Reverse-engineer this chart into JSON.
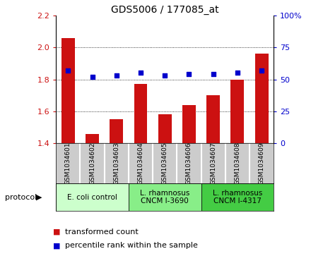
{
  "title": "GDS5006 / 177085_at",
  "samples": [
    "GSM1034601",
    "GSM1034602",
    "GSM1034603",
    "GSM1034604",
    "GSM1034605",
    "GSM1034606",
    "GSM1034607",
    "GSM1034608",
    "GSM1034609"
  ],
  "transformed_count": [
    2.06,
    1.46,
    1.55,
    1.77,
    1.58,
    1.64,
    1.7,
    1.8,
    1.96
  ],
  "percentile_rank": [
    57,
    52,
    53,
    55,
    53,
    54,
    54,
    55,
    57
  ],
  "ylim_left": [
    1.4,
    2.2
  ],
  "ylim_right": [
    0,
    100
  ],
  "yticks_left": [
    1.4,
    1.6,
    1.8,
    2.0,
    2.2
  ],
  "yticks_right": [
    0,
    25,
    50,
    75,
    100
  ],
  "ytick_labels_left": [
    "1.4",
    "1.6",
    "1.8",
    "2.0",
    "2.2"
  ],
  "ytick_labels_right": [
    "0",
    "25",
    "50",
    "75",
    "100%"
  ],
  "bar_color": "#cc1111",
  "dot_color": "#0000cc",
  "bg_color": "#ffffff",
  "sample_box_color": "#cccccc",
  "protocol_groups": [
    {
      "label": "E. coli control",
      "indices": [
        0,
        1,
        2
      ],
      "color": "#ccffcc"
    },
    {
      "label": "L. rhamnosus\nCNCM I-3690",
      "indices": [
        3,
        4,
        5
      ],
      "color": "#88ee88"
    },
    {
      "label": "L. rhamnosus\nCNCM I-4317",
      "indices": [
        6,
        7,
        8
      ],
      "color": "#44cc44"
    }
  ],
  "legend_items": [
    {
      "label": "transformed count",
      "color": "#cc1111"
    },
    {
      "label": "percentile rank within the sample",
      "color": "#0000cc"
    }
  ],
  "protocol_label": "protocol",
  "title_fontsize": 10,
  "tick_fontsize": 8,
  "legend_fontsize": 8,
  "sample_fontsize": 6.5,
  "proto_fontsize": 7.5
}
